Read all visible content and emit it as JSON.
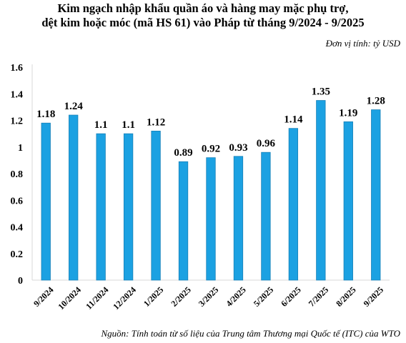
{
  "title_line1": "Kim ngạch nhập khẩu quần áo và hàng may mặc phụ trợ,",
  "title_line2": "dệt kim hoặc móc (mã HS 61) vào Pháp từ tháng 9/2024 - 9/2025",
  "unit": "Đơn vị tính: tỷ USD",
  "source": "Nguồn: Tính toán từ số liệu của Trung tâm Thương mại Quốc tế (ITC) của WTO",
  "colors": {
    "bar": "#1ba1e2",
    "bar_edge": "#1781b8",
    "axis": "#d9d9d9"
  },
  "chart_data": {
    "type": "bar",
    "categories": [
      "9/2024",
      "10/2024",
      "11/2024",
      "12/2024",
      "1/2025",
      "2/2025",
      "3/2025",
      "4/2025",
      "5/2025",
      "6/2025",
      "7/2025",
      "8/2025",
      "9/2025"
    ],
    "values": [
      1.18,
      1.24,
      1.1,
      1.1,
      1.12,
      0.89,
      0.92,
      0.93,
      0.96,
      1.14,
      1.35,
      1.19,
      1.28
    ],
    "value_labels": [
      "1.18",
      "1.24",
      "1.1",
      "1.1",
      "1.12",
      "0.89",
      "0.92",
      "0.93",
      "0.96",
      "1.14",
      "1.35",
      "1.19",
      "1.28"
    ],
    "yticks": [
      0,
      0.2,
      0.4,
      0.6,
      0.8,
      1,
      1.2,
      1.4,
      1.6
    ],
    "ytick_labels": [
      "0",
      "0.2",
      "0.4",
      "0.6",
      "0.8",
      "1",
      "1.2",
      "1.4",
      "1.6"
    ],
    "ylim": [
      0,
      1.6
    ],
    "grid": false,
    "legend": false
  }
}
